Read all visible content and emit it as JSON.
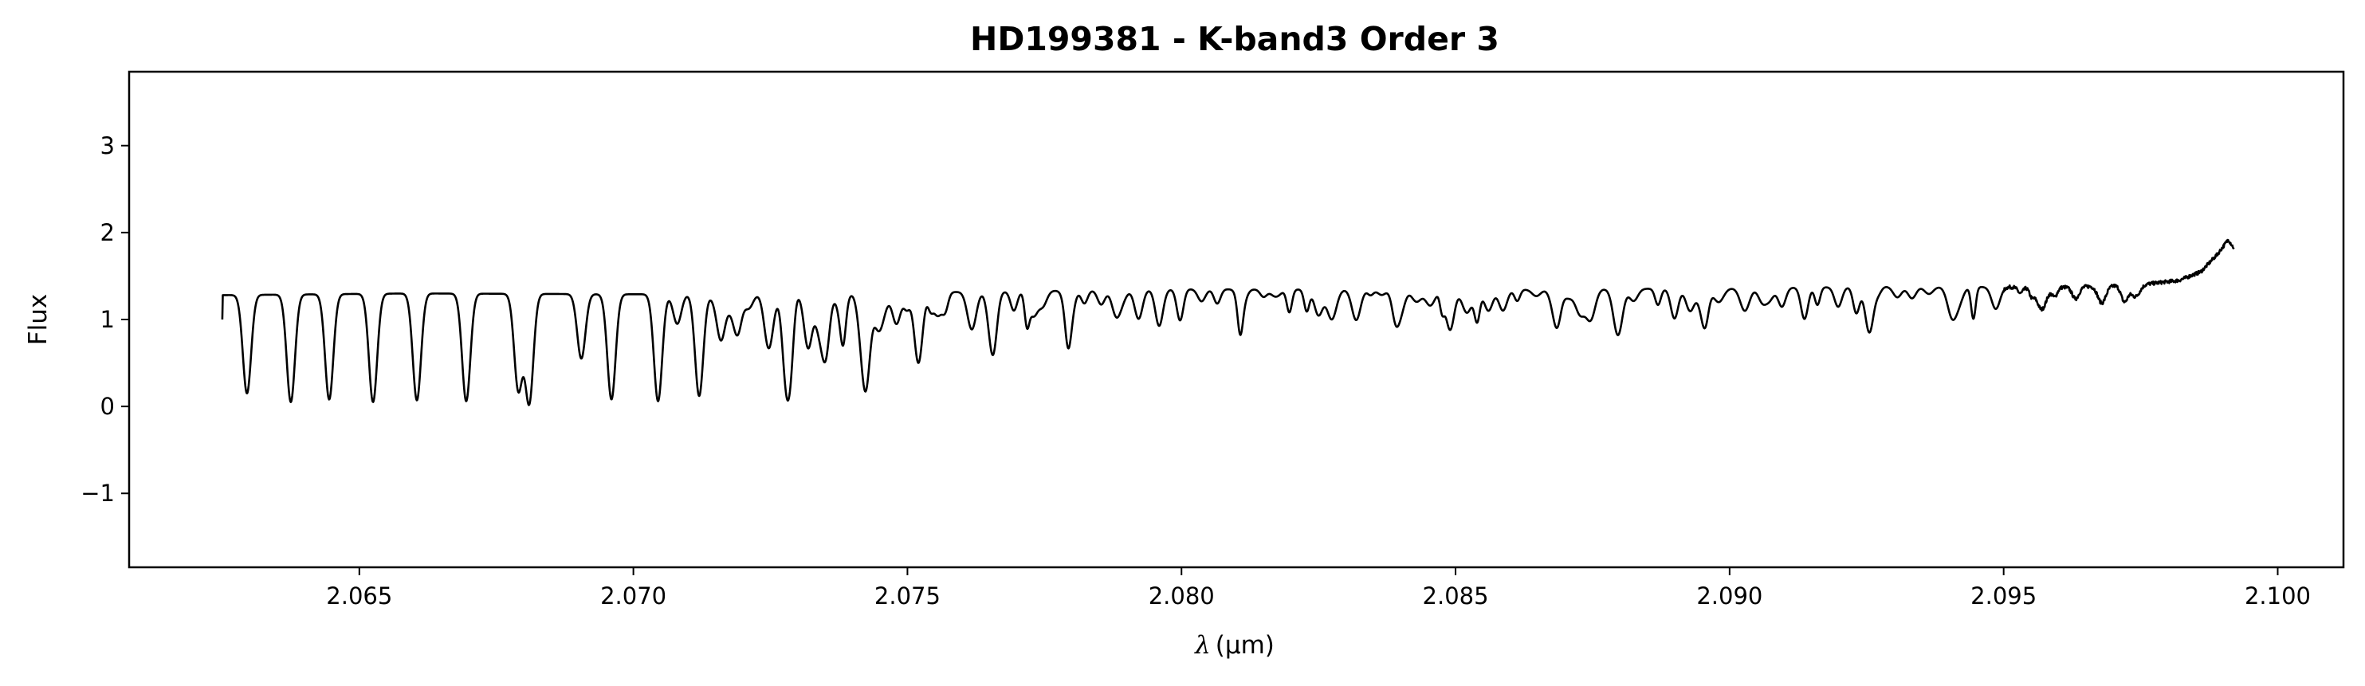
{
  "chart_data": {
    "type": "line",
    "title": "HD199381 - K-band3 Order 3",
    "xlabel_symbol": "λ",
    "xlabel_unit": "(μm)",
    "ylabel": "Flux",
    "xlim": [
      2.0608,
      2.1012
    ],
    "ylim": [
      -1.85,
      3.85
    ],
    "xticks": [
      2.065,
      2.07,
      2.075,
      2.08,
      2.085,
      2.09,
      2.095,
      2.1
    ],
    "xtick_labels": [
      "2.065",
      "2.070",
      "2.075",
      "2.080",
      "2.085",
      "2.090",
      "2.095",
      "2.100"
    ],
    "yticks": [
      -1,
      0,
      1,
      2,
      3
    ],
    "ytick_labels": [
      "−1",
      "0",
      "1",
      "2",
      "3"
    ],
    "grid": false,
    "legend": "none",
    "line_color": "#000000",
    "series": [
      {
        "x_start": 2.0625,
        "x_end": 2.0992,
        "continuum": [
          [
            2.0625,
            1.28
          ],
          [
            2.066,
            1.3
          ],
          [
            2.07,
            1.29
          ],
          [
            2.075,
            1.31
          ],
          [
            2.08,
            1.35
          ],
          [
            2.085,
            1.34
          ],
          [
            2.09,
            1.36
          ],
          [
            2.093,
            1.38
          ],
          [
            2.096,
            1.37
          ],
          [
            2.0975,
            1.4
          ],
          [
            2.0982,
            1.45
          ],
          [
            2.0986,
            1.55
          ],
          [
            2.0989,
            1.75
          ],
          [
            2.0991,
            1.92
          ],
          [
            2.0992,
            1.82
          ]
        ],
        "absorption_lines": [
          [
            2.06295,
            0.15
          ],
          [
            2.06375,
            0.05
          ],
          [
            2.06445,
            0.08
          ],
          [
            2.06525,
            0.05
          ],
          [
            2.06605,
            0.07
          ],
          [
            2.06695,
            0.06
          ],
          [
            2.0679,
            0.2
          ],
          [
            2.0681,
            0.05
          ],
          [
            2.06905,
            0.55
          ],
          [
            2.0696,
            0.08
          ],
          [
            2.07045,
            0.06
          ],
          [
            2.0708,
            0.95
          ],
          [
            2.0712,
            0.12
          ],
          [
            2.0716,
            0.8
          ],
          [
            2.0719,
            0.85
          ],
          [
            2.07245,
            0.85
          ],
          [
            2.0728,
            0.18
          ],
          [
            2.0732,
            0.95
          ],
          [
            2.0735,
            0.55
          ],
          [
            2.0738,
            1.0
          ],
          [
            2.07425,
            0.38
          ],
          [
            2.07445,
            1.05
          ],
          [
            2.0748,
            0.95
          ],
          [
            2.0752,
            0.5
          ],
          [
            2.07555,
            1.05
          ],
          [
            2.0762,
            1.1
          ],
          [
            2.07655,
            0.65
          ],
          [
            2.0773,
            1.05
          ],
          [
            2.07795,
            0.88
          ],
          [
            2.0788,
            1.1
          ],
          [
            2.0796,
            1.15
          ],
          [
            2.0811,
            1.15
          ],
          [
            2.0825,
            1.05
          ],
          [
            2.084,
            1.1
          ],
          [
            2.0849,
            0.88
          ],
          [
            2.0856,
            1.1
          ],
          [
            2.0868,
            1.15
          ],
          [
            2.088,
            1.15
          ],
          [
            2.0895,
            1.15
          ],
          [
            2.0906,
            1.2
          ],
          [
            2.09255,
            0.85
          ],
          [
            2.0942,
            1.25
          ]
        ]
      }
    ]
  }
}
